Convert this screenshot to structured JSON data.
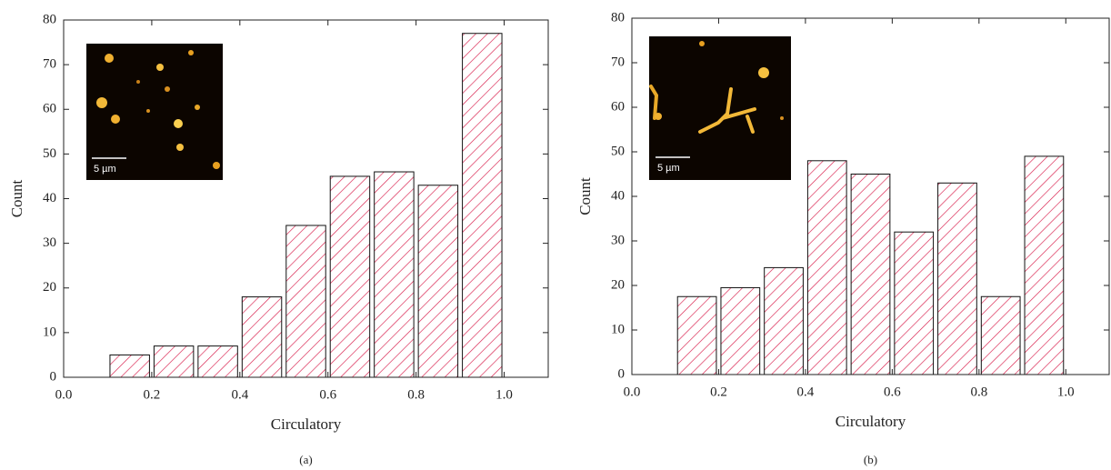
{
  "chart_data": [
    {
      "type": "histogram",
      "subtitle": "(a)",
      "x_label": "Circulatory",
      "y_label": "Count",
      "inset_label": "5 µm",
      "bins": [
        0.1,
        0.2,
        0.3,
        0.4,
        0.5,
        0.6,
        0.7,
        0.8,
        0.9,
        1.0
      ],
      "values": [
        5,
        7,
        7,
        18,
        34,
        45,
        46,
        43,
        77
      ],
      "color": "#d81b4a",
      "xlim": [
        0,
        1.1
      ],
      "ylim": [
        0,
        80
      ],
      "xticks": [
        {
          "value": 0,
          "label": "0.0"
        },
        0.2,
        0.4,
        0.6,
        0.8,
        {
          "value": 1,
          "label": "1.0"
        }
      ],
      "yticks": [
        0,
        10,
        20,
        30,
        40,
        50,
        60,
        70,
        80
      ]
    },
    {
      "type": "histogram",
      "subtitle": "(b)",
      "x_label": "Circulatory",
      "y_label": "Count",
      "inset_label": "5 µm",
      "bins": [
        0.1,
        0.2,
        0.3,
        0.4,
        0.5,
        0.6,
        0.7,
        0.8,
        0.9,
        1.0
      ],
      "values": [
        17.5,
        19.5,
        24,
        48,
        45,
        32,
        43,
        17.5,
        49
      ],
      "color": "#d81b4a",
      "xlim": [
        0,
        1.1
      ],
      "ylim": [
        0,
        80
      ],
      "xticks": [
        {
          "value": 0,
          "label": "0.0"
        },
        0.2,
        0.4,
        0.6,
        0.8,
        {
          "value": 1,
          "label": "1.0"
        }
      ],
      "yticks": [
        0,
        10,
        20,
        30,
        40,
        50,
        60,
        70,
        80
      ]
    }
  ]
}
